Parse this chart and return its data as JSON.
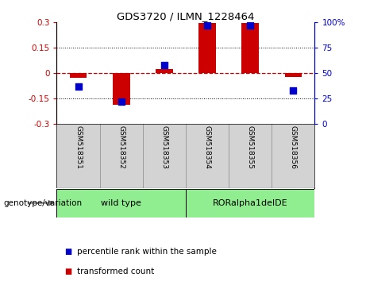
{
  "title": "GDS3720 / ILMN_1228464",
  "samples": [
    "GSM518351",
    "GSM518352",
    "GSM518353",
    "GSM518354",
    "GSM518355",
    "GSM518356"
  ],
  "transformed_count": [
    -0.03,
    -0.19,
    0.025,
    0.295,
    0.295,
    -0.025
  ],
  "percentile_rank": [
    37,
    22,
    58,
    97,
    97,
    33
  ],
  "ylim_left": [
    -0.3,
    0.3
  ],
  "ylim_right": [
    0,
    100
  ],
  "yticks_left": [
    -0.3,
    -0.15,
    0,
    0.15,
    0.3
  ],
  "yticks_right": [
    0,
    25,
    50,
    75,
    100
  ],
  "ytick_labels_left": [
    "-0.3",
    "-0.15",
    "0",
    "0.15",
    "0.3"
  ],
  "ytick_labels_right": [
    "0",
    "25",
    "50",
    "75",
    "100%"
  ],
  "bar_color": "#cc0000",
  "dot_color": "#0000cc",
  "zero_line_color": "#cc0000",
  "grid_color": "black",
  "genotype_labels": [
    "wild type",
    "RORalpha1delDE"
  ],
  "genotype_ranges": [
    [
      0,
      3
    ],
    [
      3,
      6
    ]
  ],
  "genotype_color": "#90ee90",
  "legend_items": [
    "transformed count",
    "percentile rank within the sample"
  ],
  "legend_colors": [
    "#cc0000",
    "#0000cc"
  ],
  "genotype_label": "genotype/variation",
  "plot_bg": "#ffffff",
  "tick_area_bg": "#d3d3d3",
  "bar_width": 0.4,
  "dot_size": 40
}
